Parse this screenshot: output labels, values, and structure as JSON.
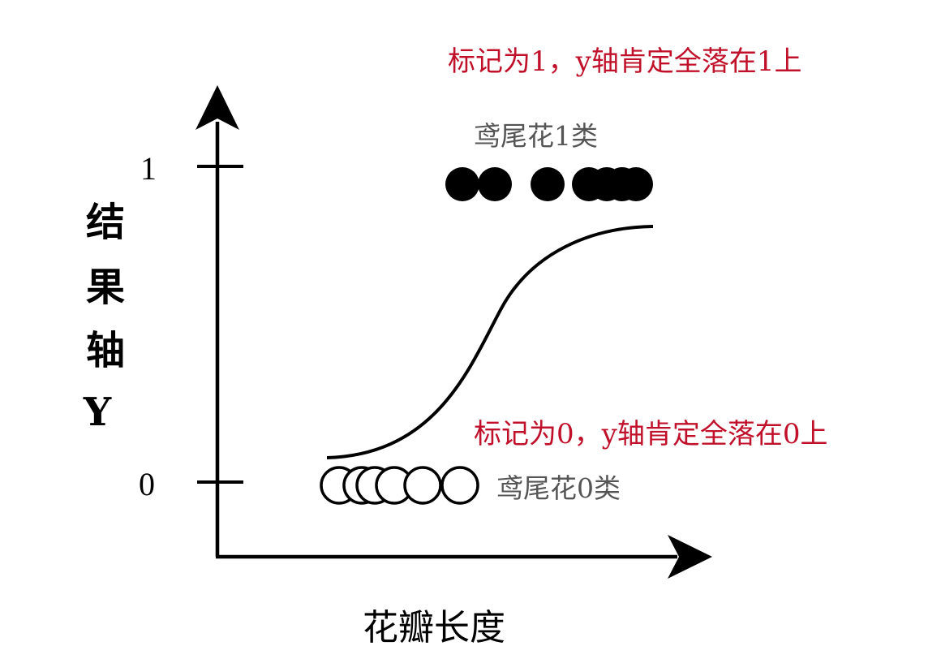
{
  "colors": {
    "axis": "#000000",
    "annotation": "#c0102a",
    "class_label": "#555555",
    "class1_fill": "#000000",
    "class0_fill": "#ffffff",
    "class0_stroke": "#000000"
  },
  "diagram": {
    "x_axis_title": "花瓣长度",
    "y_axis_title": [
      "结",
      "果",
      "轴",
      "Y"
    ],
    "tick_labels": {
      "one": "1",
      "zero": "0"
    },
    "annotations": {
      "class1": "标记为1，y轴肯定全落在1上",
      "class0": "标记为0，y轴肯定全落在0上"
    },
    "class_labels": {
      "class1": "鸢尾花1类",
      "class0": "鸢尾花0类"
    },
    "class1_points": 7,
    "class0_points": 6
  }
}
